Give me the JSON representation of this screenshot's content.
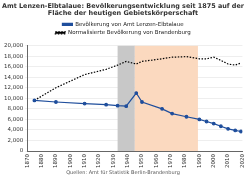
{
  "chart_data": {
    "type": "line",
    "title": [
      "Amt Lenzen-Elbtalaue: Bevölkerungsentwicklung seit 1875 auf der",
      "Fläche der heutigen Gebietskörperschaft"
    ],
    "subtitle": "Quellen: Amt für Statistik Berlin-Brandenburg",
    "x": [
      1875,
      1890,
      1910,
      1925,
      1933,
      1939,
      1946,
      1950,
      1964,
      1971,
      1981,
      1990,
      1995,
      2000,
      2005,
      2010,
      2015,
      2019
    ],
    "series": [
      {
        "name": "Bevölkerung von Amt Lenzen-Elbtalaue",
        "color": "#1f4e9c",
        "marker": "circle",
        "line_style": "solid",
        "values": [
          9600,
          9300,
          9000,
          8800,
          8600,
          8500,
          11000,
          9300,
          8000,
          7100,
          6500,
          6000,
          5600,
          5200,
          4700,
          4200,
          3900,
          3700
        ]
      },
      {
        "name": "Normalisierte Bevölkerung von Brandenburg",
        "color": "#000000",
        "marker": "none",
        "line_style": "dotted",
        "values": [
          9600,
          12000,
          14500,
          15500,
          16300,
          17000,
          16500,
          17000,
          17500,
          17800,
          17900,
          17500,
          17500,
          17800,
          17200,
          16500,
          16300,
          16700
        ]
      }
    ],
    "shaded_periods": [
      {
        "start": 1933,
        "end": 1945,
        "color": "#c8c8c8"
      },
      {
        "start": 1945,
        "end": 1989,
        "color": "#fbd9bf"
      }
    ],
    "xlim": [
      1870,
      2020
    ],
    "xticks": [
      1870,
      1880,
      1890,
      1900,
      1910,
      1920,
      1930,
      1940,
      1950,
      1960,
      1970,
      1980,
      1990,
      2000,
      2010,
      2020
    ],
    "ylim": [
      0,
      20000
    ],
    "yticks": [
      0,
      {
        "value": 2000,
        "label": "2,000"
      },
      {
        "value": 4000,
        "label": "4,000"
      },
      {
        "value": 6000,
        "label": "6,000"
      },
      {
        "value": 8000,
        "label": "8,000"
      },
      {
        "value": 10000,
        "label": "10,000"
      },
      {
        "value": 12000,
        "label": "12,000"
      },
      {
        "value": 14000,
        "label": "14,000"
      },
      {
        "value": 16000,
        "label": "16,000"
      },
      {
        "value": 18000,
        "label": "18,000"
      },
      {
        "value": 20000,
        "label": "20,000"
      }
    ],
    "grid": true,
    "legend": "top"
  }
}
